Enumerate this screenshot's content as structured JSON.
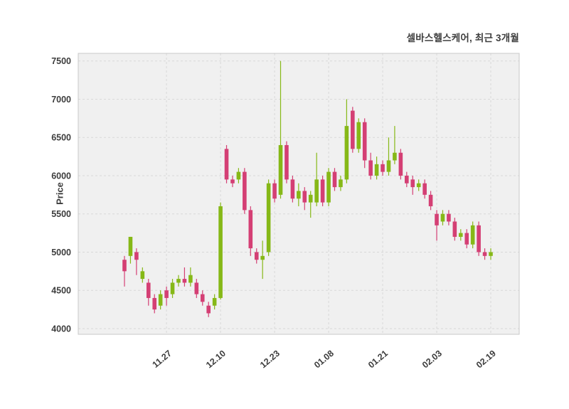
{
  "header": {
    "title": "셀바스헬스케어, 최근 3개월"
  },
  "chart_data": {
    "type": "candlestick",
    "title": "셀바스헬스케어, 최근 3개월",
    "xlabel": "",
    "ylabel": "Price",
    "ylim": [
      3925,
      7600
    ],
    "yticks": [
      4000,
      4500,
      5000,
      5500,
      6000,
      6500,
      7000,
      7500
    ],
    "xtick_labels": [
      "11.27",
      "12.10",
      "12.23",
      "01.08",
      "01.21",
      "02.03",
      "02.19"
    ],
    "xtick_indices": [
      7,
      16,
      25,
      34,
      43,
      52,
      61
    ],
    "grid": true,
    "grid_style": "dashed",
    "legend": "none",
    "colors": {
      "up": "#86b817",
      "down": "#d43f74",
      "panel_bg": "#f0f0f0",
      "grid": "#d8d8d8",
      "border": "#c8c8c8",
      "text": "#3d3d3d"
    },
    "candle_format": [
      "open",
      "high",
      "low",
      "close"
    ],
    "candles": [
      [
        4900,
        4950,
        4550,
        4750
      ],
      [
        4950,
        5200,
        4850,
        5200
      ],
      [
        5000,
        5050,
        4700,
        4900
      ],
      [
        4650,
        4800,
        4600,
        4750
      ],
      [
        4600,
        4650,
        4300,
        4400
      ],
      [
        4400,
        4450,
        4200,
        4250
      ],
      [
        4300,
        4500,
        4250,
        4450
      ],
      [
        4500,
        4550,
        4300,
        4400
      ],
      [
        4450,
        4650,
        4400,
        4600
      ],
      [
        4600,
        4700,
        4550,
        4650
      ],
      [
        4650,
        4800,
        4550,
        4600
      ],
      [
        4600,
        4800,
        4550,
        4700
      ],
      [
        4600,
        4650,
        4400,
        4450
      ],
      [
        4450,
        4500,
        4300,
        4350
      ],
      [
        4300,
        4350,
        4150,
        4200
      ],
      [
        4300,
        4450,
        4250,
        4400
      ],
      [
        4400,
        5650,
        4380,
        5600
      ],
      [
        6350,
        6400,
        5900,
        5950
      ],
      [
        5950,
        6000,
        5850,
        5900
      ],
      [
        5950,
        6100,
        5900,
        6050
      ],
      [
        6050,
        6100,
        5500,
        5550
      ],
      [
        5550,
        5600,
        4950,
        5050
      ],
      [
        5000,
        5050,
        4850,
        4900
      ],
      [
        4900,
        5150,
        4650,
        4950
      ],
      [
        5000,
        5950,
        4950,
        5900
      ],
      [
        5900,
        5950,
        5650,
        5700
      ],
      [
        5750,
        7500,
        5700,
        6400
      ],
      [
        6400,
        6450,
        5900,
        5950
      ],
      [
        5950,
        6000,
        5650,
        5700
      ],
      [
        5700,
        5900,
        5600,
        5800
      ],
      [
        5800,
        5850,
        5550,
        5650
      ],
      [
        5650,
        5800,
        5450,
        5750
      ],
      [
        5650,
        6300,
        5600,
        5950
      ],
      [
        5950,
        6000,
        5600,
        5650
      ],
      [
        5650,
        6100,
        5600,
        6050
      ],
      [
        6050,
        6100,
        5800,
        5850
      ],
      [
        5850,
        6000,
        5800,
        5950
      ],
      [
        5950,
        7000,
        5900,
        6650
      ],
      [
        6850,
        6900,
        6300,
        6350
      ],
      [
        6350,
        6750,
        6300,
        6700
      ],
      [
        6700,
        6750,
        6100,
        6200
      ],
      [
        6200,
        6300,
        5950,
        6000
      ],
      [
        6000,
        6250,
        5950,
        6150
      ],
      [
        6150,
        6200,
        6000,
        6050
      ],
      [
        6050,
        6500,
        6000,
        6200
      ],
      [
        6200,
        6650,
        6150,
        6300
      ],
      [
        6300,
        6350,
        5950,
        6000
      ],
      [
        6000,
        6050,
        5850,
        5900
      ],
      [
        5950,
        6000,
        5750,
        5850
      ],
      [
        5850,
        5950,
        5800,
        5900
      ],
      [
        5900,
        5950,
        5700,
        5750
      ],
      [
        5750,
        5800,
        5550,
        5600
      ],
      [
        5500,
        5550,
        5150,
        5350
      ],
      [
        5400,
        5550,
        5350,
        5500
      ],
      [
        5500,
        5550,
        5350,
        5400
      ],
      [
        5400,
        5450,
        5150,
        5200
      ],
      [
        5200,
        5300,
        5150,
        5250
      ],
      [
        5250,
        5300,
        5050,
        5100
      ],
      [
        5100,
        5400,
        5050,
        5350
      ],
      [
        5350,
        5400,
        4950,
        5000
      ],
      [
        5000,
        5050,
        4900,
        4950
      ],
      [
        4950,
        5050,
        4900,
        5000
      ]
    ]
  }
}
